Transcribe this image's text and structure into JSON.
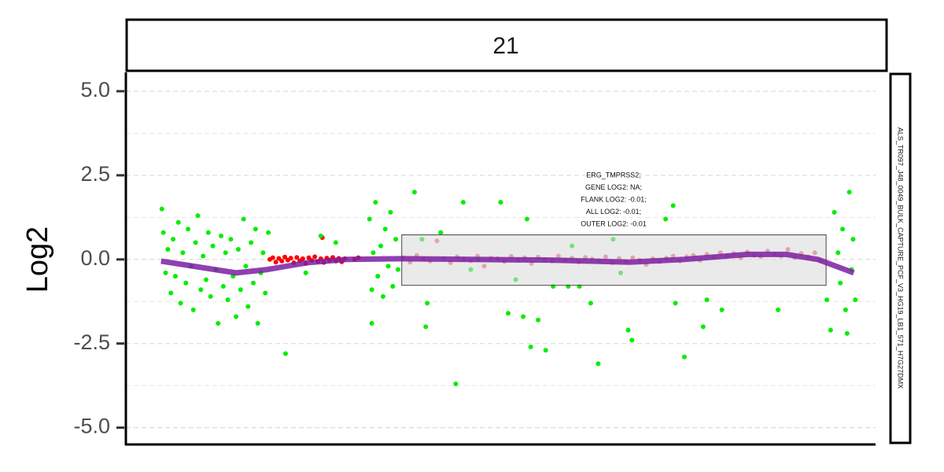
{
  "chart_data": {
    "type": "scatter",
    "panel_label": "21",
    "side_label": "ALS_TR097_J48_0049_BULK_CAPTURE_PCF_V3_HG19_LB1_571_H7G27DMX",
    "y_label": "Log2",
    "xlim": [
      0,
      100
    ],
    "ylim": [
      -5.5,
      5.56
    ],
    "yticks": [
      {
        "value": -5,
        "label": "-5.0"
      },
      {
        "value": -2.5,
        "label": "-2.5"
      },
      {
        "value": 0,
        "label": "0.0"
      },
      {
        "value": 2.5,
        "label": "2.5"
      },
      {
        "value": 5,
        "label": "5.0"
      }
    ],
    "minor_yticks": [
      -3.75,
      -1.25,
      1.25,
      3.75
    ],
    "grid": true,
    "points": [
      {
        "color": "#e86a6a",
        "x": [
          37,
          37.9,
          38.8,
          39.7,
          40.6,
          41.5,
          42.4,
          43.3,
          44.2,
          45.1,
          46,
          46.9,
          47.8,
          48.7,
          49.6,
          50.5,
          51.4,
          52.3,
          53.2,
          54.1,
          55,
          55.9,
          56.8,
          57.7,
          58.6,
          59.5,
          60.4,
          61.3,
          62.2,
          63.1,
          64,
          64.9,
          65.8,
          66.7,
          67.6,
          68.5,
          69.4,
          70.3,
          71.2,
          72.1,
          73,
          73.9,
          74.8,
          75.7,
          76.6,
          77.5,
          78.4,
          79.3,
          80.2,
          81.1,
          82,
          82.9,
          83.8,
          84.7,
          85.6,
          86.5,
          87.4,
          88.3,
          89.2,
          90.1,
          91,
          91.9,
          92.6
        ],
        "values": [
          0.05,
          -0.08,
          0.12,
          0.02,
          -0.05,
          0.55,
          0.03,
          -0.1,
          0.08,
          0.0,
          -0.04,
          0.1,
          -0.2,
          0.04,
          0.02,
          -0.06,
          0.09,
          -0.03,
          0.05,
          -0.12,
          0.07,
          0.0,
          -0.05,
          0.1,
          -0.02,
          0.04,
          -0.08,
          0.06,
          0.01,
          -0.04,
          0.08,
          -0.1,
          0.03,
          -0.06,
          0.05,
          -0.02,
          -0.15,
          0.02,
          -0.07,
          0.04,
          0.1,
          -0.05,
          0.08,
          0.12,
          -0.03,
          0.15,
          0.06,
          0.2,
          0.1,
          0.18,
          0.05,
          0.22,
          0.12,
          0.08,
          0.25,
          0.15,
          0.1,
          0.3,
          0.05,
          0.18,
          0.08,
          0.2,
          -0.05
        ]
      },
      {
        "color": "#ff0000",
        "x": [
          19.2,
          19.6,
          20,
          20.4,
          20.8,
          21.2,
          21.6,
          22,
          22.4,
          22.8,
          23.2,
          23.6,
          24,
          24.4,
          24.8,
          25.2,
          25.6,
          26,
          26.4,
          26.8,
          27.2,
          27.6,
          28,
          28.4,
          28.8,
          29.2,
          30.5,
          31,
          26.2
        ],
        "values": [
          0,
          0.05,
          -0.08,
          0.03,
          -0.05,
          0.07,
          -0.02,
          0.04,
          -0.1,
          0.06,
          -0.04,
          0.02,
          -0.12,
          0.05,
          -0.03,
          0.08,
          -0.06,
          0.02,
          -0.09,
          0.04,
          -0.02,
          0.06,
          -0.05,
          0.03,
          -0.07,
          0.02,
          0,
          0.05,
          0.65
        ]
      },
      {
        "color": "#00ee00",
        "x": [
          4.8,
          5,
          5.3,
          5.6,
          6,
          6.3,
          6.6,
          7,
          7.3,
          7.6,
          8,
          8.3,
          8.7,
          9,
          9.3,
          9.6,
          10,
          10.3,
          10.7,
          11,
          11.3,
          11.6,
          12,
          12.3,
          12.7,
          13,
          13.3,
          13.6,
          14,
          14.3,
          14.7,
          15,
          15.3,
          15.7,
          16,
          16.3,
          16.7,
          17,
          17.3,
          17.6,
          18,
          18.3,
          18.6,
          19,
          21.3,
          24,
          26,
          28,
          32.5,
          32.8,
          33,
          33.3,
          33.6,
          34,
          34.3,
          34.6,
          35,
          35.3,
          35.6,
          36,
          36.3,
          32.8,
          38.5,
          40,
          40.2,
          44,
          45,
          47,
          50,
          51,
          52,
          53,
          53.5,
          54,
          55,
          56,
          57,
          59,
          62,
          63,
          66,
          67,
          67.5,
          73,
          73.3,
          74.5,
          77,
          77.5,
          79.5,
          87,
          93.5,
          94,
          94.5,
          95,
          95.3,
          95.6,
          96,
          96.2,
          96.5,
          96.8,
          97,
          97.3,
          72,
          65,
          60.5,
          39.5,
          46,
          42,
          59.5
        ],
        "values": [
          1.5,
          0.8,
          -0.4,
          0.3,
          -1,
          0.6,
          -0.5,
          1.1,
          -1.3,
          0.2,
          -0.7,
          0.9,
          -0.2,
          -1.5,
          0.5,
          1.3,
          -0.9,
          0.1,
          -0.6,
          0.8,
          -1.1,
          0.4,
          -0.3,
          -1.9,
          0.7,
          -0.8,
          0.2,
          -1.2,
          0.6,
          -0.5,
          -1.7,
          0.3,
          -0.9,
          1.2,
          -0.2,
          -1.4,
          0.5,
          -0.7,
          0.9,
          -1.9,
          -0.4,
          0.2,
          -1.0,
          0.8,
          -2.8,
          -0.4,
          0.7,
          0.5,
          1.2,
          -0.9,
          0.2,
          1.7,
          -0.5,
          0.4,
          -1.1,
          0.9,
          -0.2,
          1.4,
          -0.8,
          0.6,
          -0.3,
          -1.9,
          2.0,
          -2.0,
          -1.3,
          -3.7,
          1.7,
          0.0,
          1.7,
          -1.6,
          -0.6,
          -1.7,
          1.2,
          -2.6,
          -1.8,
          -2.7,
          -0.8,
          -0.8,
          -1.3,
          -3.1,
          -0.4,
          -2.1,
          -2.4,
          1.6,
          -1.3,
          -2.9,
          -2.0,
          -1.2,
          -1.5,
          -1.5,
          -1.2,
          -2.1,
          1.4,
          0.2,
          -0.7,
          0.9,
          -1.5,
          -2.2,
          2.0,
          -0.3,
          0.6,
          -1.2,
          1.2,
          0.6,
          -0.8,
          0.6,
          -0.3,
          0.8,
          0.4
        ]
      }
    ],
    "region": {
      "color": "#d9d9d9",
      "x": [
        36.8,
        93.4
      ],
      "y": [
        -0.77,
        0.73
      ]
    },
    "trend": {
      "color": "#7b1fa2",
      "x": [
        4.7,
        14.7,
        18.9,
        24.1,
        29.4,
        36.7,
        46.2,
        56.7,
        67.2,
        74.5,
        82.9,
        88.1,
        92.3,
        97.1
      ],
      "values": [
        -0.05,
        -0.4,
        -0.3,
        -0.1,
        0.0,
        0.02,
        0,
        -0.02,
        -0.08,
        0,
        0.15,
        0.15,
        0,
        -0.4
      ]
    },
    "annotation": [
      "ERG_TMPRSS2;",
      "GENE LOG2: NA;",
      "FLANK LOG2: -0.01;",
      "ALL LOG2: -0.01;",
      "OUTER LOG2: -0.01"
    ]
  }
}
